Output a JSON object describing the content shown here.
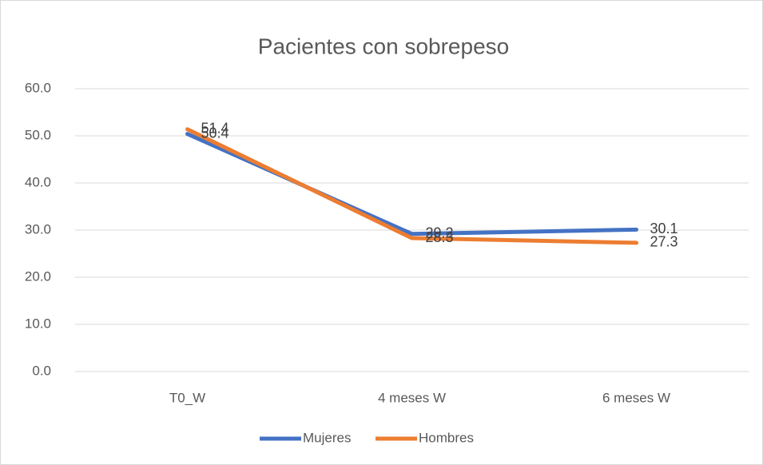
{
  "chart_data": {
    "type": "line",
    "title": "Pacientes con sobrepeso",
    "categories": [
      "T0_W",
      "4 meses W",
      "6 meses W"
    ],
    "series": [
      {
        "name": "Mujeres",
        "color": "#4472c4",
        "values": [
          50.4,
          29.2,
          30.1
        ]
      },
      {
        "name": "Hombres",
        "color": "#ed7d31",
        "values": [
          51.4,
          28.3,
          27.3
        ]
      }
    ],
    "ylim": [
      0,
      60
    ],
    "yticks": [
      {
        "value": 0,
        "label": "0.0"
      },
      {
        "value": 10,
        "label": "10.0"
      },
      {
        "value": 20,
        "label": "20.0"
      },
      {
        "value": 30,
        "label": "30.0"
      },
      {
        "value": 40,
        "label": "40.0"
      },
      {
        "value": 50,
        "label": "50.0"
      },
      {
        "value": 60,
        "label": "60.0"
      }
    ],
    "grid": true,
    "legend": "bottom"
  }
}
